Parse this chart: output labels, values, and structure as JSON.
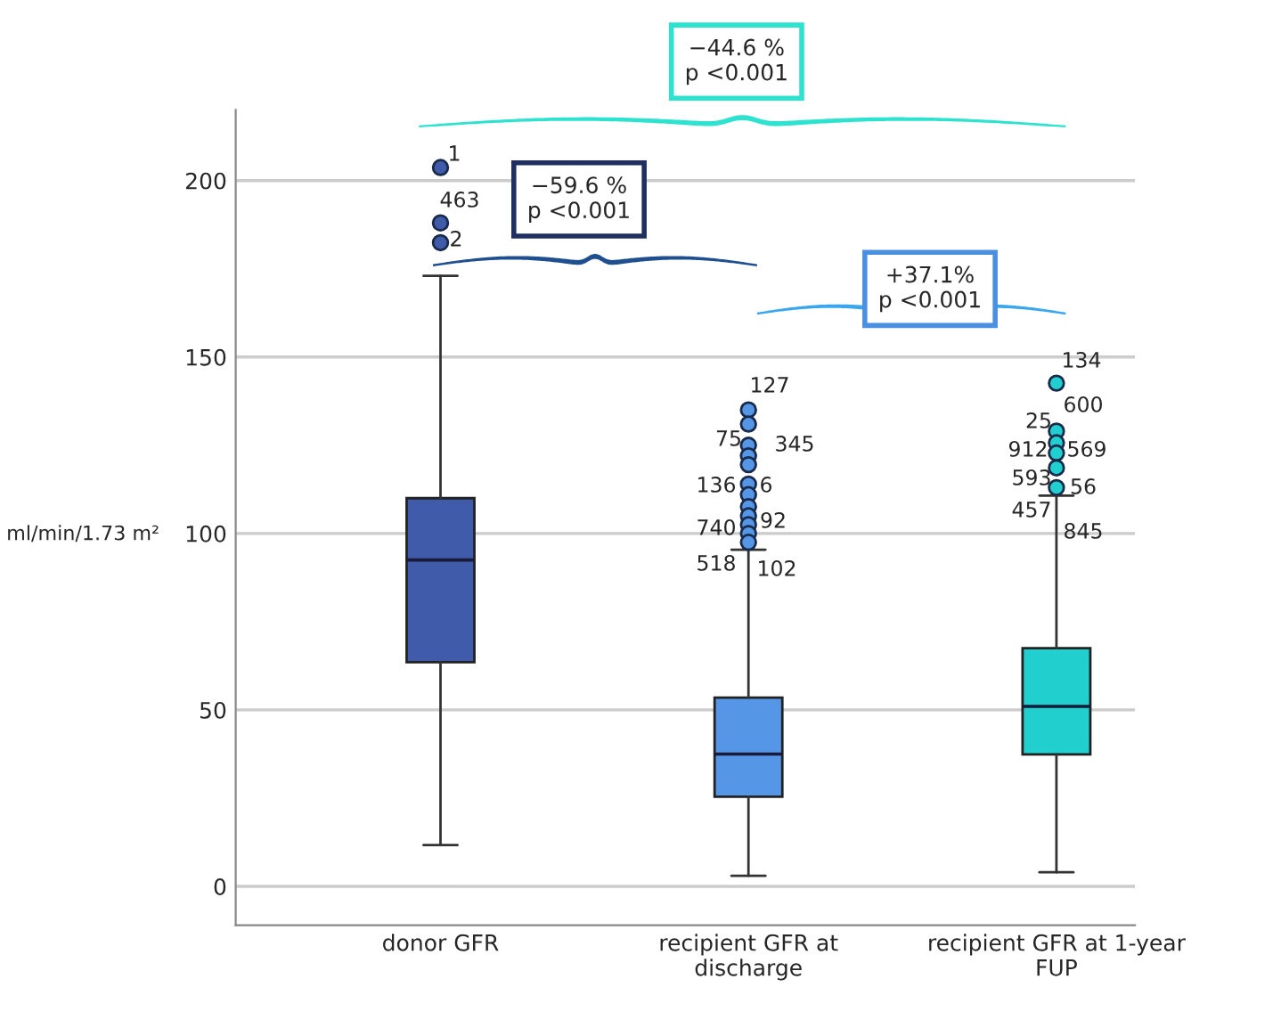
{
  "chart_data": {
    "type": "box",
    "ylabel": "ml/min/1.73 m²",
    "categories": [
      "donor GFR",
      "recipient GFR at\ndischarge",
      "recipient GFR at 1-year\nFUP"
    ],
    "colors": [
      "#3f5ba9",
      "#5596e6",
      "#21cfcf"
    ],
    "boxes": [
      {
        "low": 11.7,
        "q1": 63.5,
        "median": 92.5,
        "q3": 110,
        "high": 173,
        "outliers": [
          203.7,
          188,
          182.4
        ]
      },
      {
        "low": 3,
        "q1": 25.4,
        "median": 37.5,
        "q3": 53.5,
        "high": 95.4,
        "outliers": [
          135,
          131,
          125,
          122,
          119.5,
          114,
          111,
          107.6,
          105,
          102.5,
          100,
          97.5
        ]
      },
      {
        "low": 4,
        "q1": 37.4,
        "median": 51,
        "q3": 67.5,
        "high": 110.7,
        "outliers": [
          142.6,
          129,
          125.7,
          122.8,
          118.6,
          113
        ]
      }
    ],
    "ylim": [
      -11,
      220
    ],
    "yticks": [
      0,
      50,
      100,
      150,
      200
    ],
    "grid": "y",
    "annotations": [
      "−44.6 %\np <0.001",
      "−59.6 %\np <0.001",
      "+37.1%\np <0.001",
      "1",
      "463",
      "2",
      "127",
      "75",
      "345",
      "136",
      "6",
      "740",
      "92",
      "518",
      "102",
      "134",
      "600",
      "25",
      "912",
      "569",
      "593",
      "56",
      "457",
      "845"
    ]
  }
}
